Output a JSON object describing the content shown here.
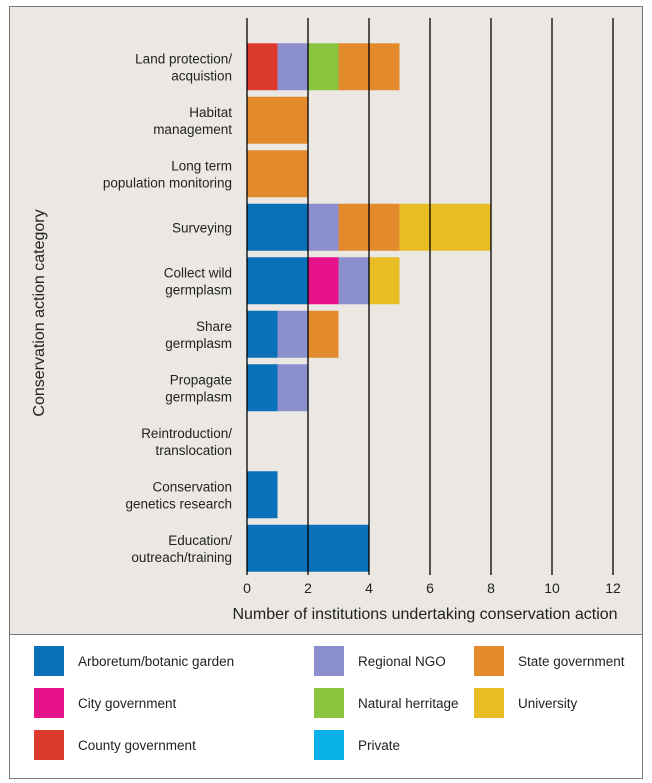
{
  "chart_data": {
    "type": "bar",
    "orientation": "horizontal",
    "stacked": true,
    "xlabel": "Number of institutions undertaking conservation action",
    "ylabel": "Conservation action category",
    "xlim": [
      0,
      12
    ],
    "xticks": [
      0,
      2,
      4,
      6,
      8,
      10,
      12
    ],
    "grid": "vertical lines",
    "legend_position": "bottom",
    "categories": [
      [
        "Land protection/",
        "acquistion"
      ],
      [
        "Habitat",
        "management"
      ],
      [
        "Long term",
        "population monitoring"
      ],
      [
        "Surveying"
      ],
      [
        "Collect wild",
        "germplasm"
      ],
      [
        "Share",
        "germplasm"
      ],
      [
        "Propagate",
        "germplasm"
      ],
      [
        "Reintroduction/",
        "translocation"
      ],
      [
        "Conservation",
        "genetics research"
      ],
      [
        "Education/",
        "outreach/training"
      ]
    ],
    "series": [
      {
        "name": "County government",
        "color": "#db3a2c",
        "values": [
          1,
          0,
          0,
          0,
          0,
          0,
          0,
          0,
          0,
          0
        ]
      },
      {
        "name": "Arboretum/botanic garden",
        "color": "#0a70b8",
        "values": [
          0,
          0,
          0,
          2,
          2,
          1,
          1,
          0,
          1,
          4
        ]
      },
      {
        "name": "City government",
        "color": "#e5128a",
        "values": [
          0,
          0,
          0,
          0,
          1,
          0,
          0,
          0,
          0,
          0
        ]
      },
      {
        "name": "Regional NGO",
        "color": "#8c8fce",
        "values": [
          1,
          0,
          0,
          1,
          1,
          1,
          1,
          0,
          0,
          0
        ]
      },
      {
        "name": "Natural herritage",
        "color": "#8bc53f",
        "values": [
          1,
          0,
          0,
          0,
          0,
          0,
          0,
          0,
          0,
          0
        ]
      },
      {
        "name": "State government",
        "color": "#e38a2c",
        "values": [
          2,
          2,
          2,
          2,
          0,
          1,
          0,
          0,
          0,
          0
        ]
      },
      {
        "name": "University",
        "color": "#e8bd25",
        "values": [
          0,
          0,
          0,
          3,
          1,
          0,
          0,
          0,
          0,
          0
        ]
      },
      {
        "name": "Private",
        "color": "#0ab0e8",
        "values": [
          0,
          0,
          0,
          0,
          0,
          0,
          0,
          0,
          0,
          0
        ]
      }
    ]
  },
  "legend": [
    {
      "label": "Arboretum/botanic garden",
      "color": "#0a70b8"
    },
    {
      "label": "Regional NGO",
      "color": "#8c8fce"
    },
    {
      "label": "State government",
      "color": "#e38a2c"
    },
    {
      "label": "City government",
      "color": "#e5128a"
    },
    {
      "label": "Natural herritage",
      "color": "#8bc53f"
    },
    {
      "label": "University",
      "color": "#e8bd25"
    },
    {
      "label": "County government",
      "color": "#db3a2c"
    },
    {
      "label": "Private",
      "color": "#0ab0e8"
    }
  ]
}
